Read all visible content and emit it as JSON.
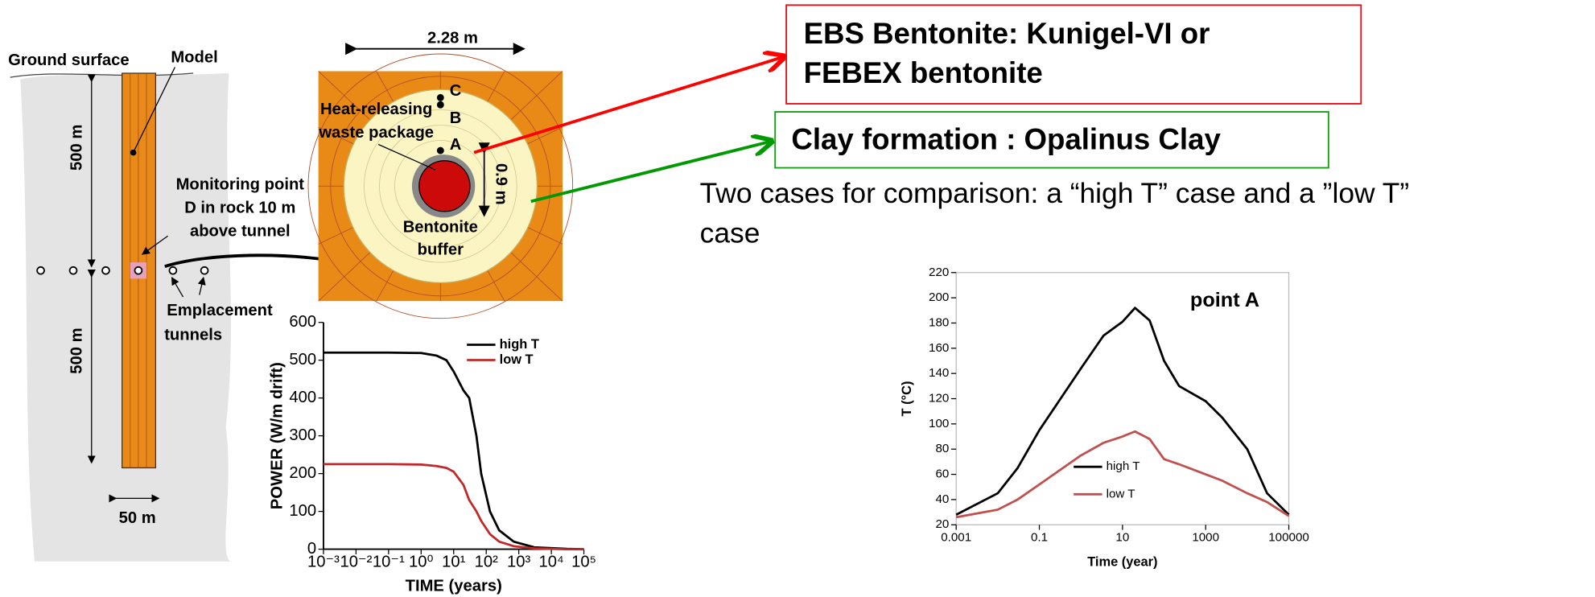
{
  "diagram": {
    "ground_surface": "Ground surface",
    "model": "Model",
    "depth_above": "500 m",
    "depth_below": "500 m",
    "monitoring": [
      "Monitoring point",
      "D in rock 10 m",
      "above tunnel"
    ],
    "tunnels": [
      "Emplacement",
      "tunnels"
    ],
    "width": "50 m",
    "section_width": "2.28 m",
    "waste_package": [
      "Heat-releasing",
      "waste package"
    ],
    "point_c": "C",
    "point_b": "B",
    "point_a": "A",
    "buffer_thickness": "0.9 m",
    "buffer": [
      "Bentonite",
      "buffer"
    ]
  },
  "boxes": {
    "ebs": [
      "EBS Bentonite: Kunigel-VI or",
      "FEBEX bentonite"
    ],
    "clay": "Clay formation : Opalinus Clay"
  },
  "note": [
    "Two cases for comparison: a “high T” case and a ”low T”",
    "case"
  ],
  "chart_data": [
    {
      "type": "line",
      "xlabel": "TIME (years)",
      "ylabel": "POWER (W/m drift)",
      "log_x": true,
      "xlim": [
        0.001,
        100000
      ],
      "ylim": [
        0,
        600
      ],
      "xticks": [
        {
          "value": 0.001,
          "label": "10⁻³"
        },
        {
          "value": 0.01,
          "label": "10⁻²"
        },
        {
          "value": 0.1,
          "label": "10⁻¹"
        },
        {
          "value": 1,
          "label": "10⁰"
        },
        {
          "value": 10,
          "label": "10¹"
        },
        {
          "value": 100,
          "label": "10²"
        },
        {
          "value": 1000,
          "label": "10³"
        },
        {
          "value": 10000,
          "label": "10⁴"
        },
        {
          "value": 100000,
          "label": "10⁵"
        }
      ],
      "yticks": [
        0,
        100,
        200,
        300,
        400,
        500,
        600
      ],
      "legend": "upper right",
      "x": [
        0.001,
        0.01,
        0.1,
        1,
        3,
        6,
        10,
        20,
        30,
        50,
        70,
        130,
        250,
        700,
        3000,
        30000,
        100000
      ],
      "series": [
        {
          "name": "high T",
          "color": "#000000",
          "values": [
            520,
            520,
            520,
            519,
            512,
            500,
            470,
            420,
            400,
            300,
            200,
            100,
            50,
            20,
            5,
            1,
            0
          ]
        },
        {
          "name": "low T",
          "color": "#c0282a",
          "values": [
            225,
            225,
            225,
            224,
            220,
            215,
            205,
            170,
            130,
            100,
            75,
            40,
            20,
            8,
            2,
            0,
            0
          ]
        }
      ]
    },
    {
      "type": "line",
      "xlabel": "Time (year)",
      "ylabel": "T (°C)",
      "annotation": "point A",
      "log_x": true,
      "xlim": [
        0.001,
        100000
      ],
      "ylim": [
        20,
        220
      ],
      "xticks": [
        0.001,
        0.1,
        10,
        1000,
        100000
      ],
      "yticks": [
        20,
        40,
        60,
        80,
        100,
        120,
        140,
        160,
        180,
        200,
        220
      ],
      "legend": "lower center",
      "x": [
        0.001,
        0.01,
        0.03,
        0.1,
        1,
        3.5,
        10,
        20,
        45,
        100,
        230,
        1000,
        2500,
        10000,
        30000,
        100000
      ],
      "series": [
        {
          "name": "high T",
          "color": "#000000",
          "values": [
            28,
            45,
            65,
            95,
            144,
            170,
            181,
            192,
            182,
            150,
            130,
            118,
            105,
            80,
            45,
            28
          ]
        },
        {
          "name": "low T",
          "color": "#c0504d",
          "values": [
            26,
            32,
            40,
            52,
            75,
            85,
            90,
            94,
            88,
            72,
            68,
            60,
            55,
            45,
            38,
            27
          ]
        }
      ]
    }
  ]
}
